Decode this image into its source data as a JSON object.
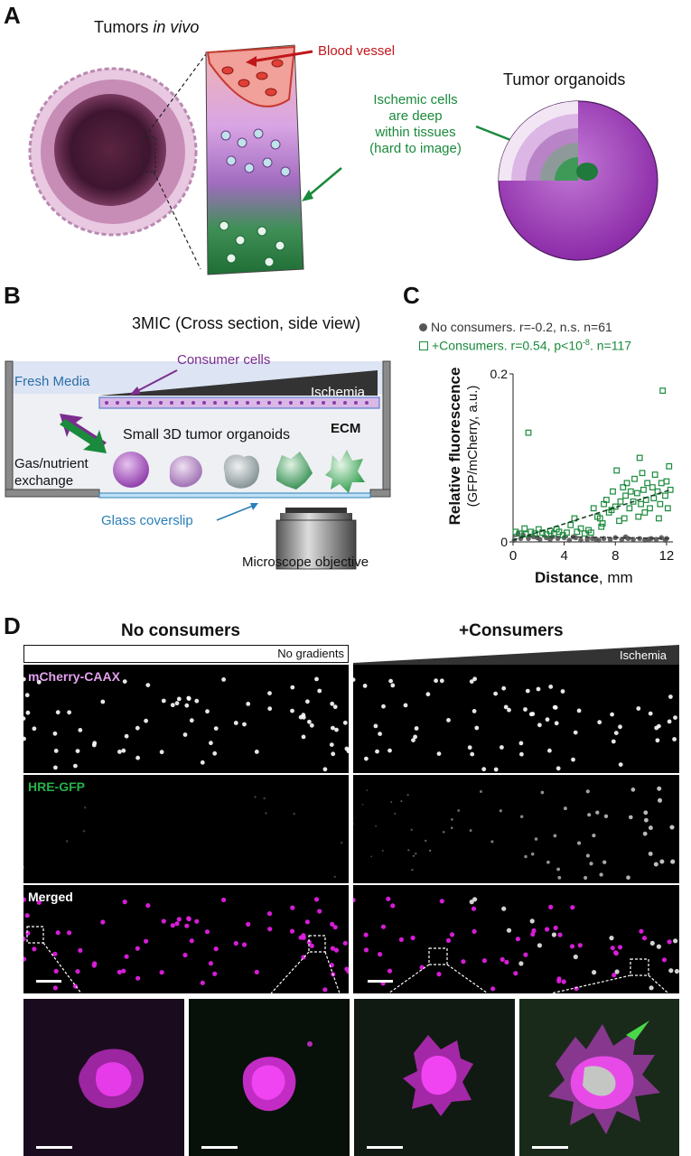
{
  "panels": {
    "a": {
      "letter": "A",
      "title_prefix": "Tumors ",
      "title_italic": "in vivo",
      "blood_vessel": "Blood vessel",
      "ischemic": [
        "Ischemic cells",
        "are deep",
        "within tissues",
        "(hard to image)"
      ],
      "organoids": "Tumor organoids"
    },
    "b": {
      "letter": "B",
      "title": "3MIC (Cross section, side view)",
      "consumer_cells": "Consumer cells",
      "fresh_media": "Fresh Media",
      "ischemia": "Ischemia",
      "ecm": "ECM",
      "small_organoids": "Small 3D tumor organoids",
      "gas_exchange": [
        "Gas/nutrient",
        "exchange"
      ],
      "glass": "Glass coverslip",
      "microscope": "Microscope objective"
    },
    "c": {
      "letter": "C",
      "legend_gray": "No consumers. r=-0.2, n.s. n=61",
      "legend_green_a": "+Consumers. r=0.54, p<10",
      "legend_green_exp": "-8",
      "legend_green_b": ". n=117",
      "ylabel_bold": "Relative fluorescence",
      "ylabel_sub": "(GFP/mCherry, a.u.)",
      "xlabel_bold": "Distance",
      "xlabel_unit": ", mm"
    },
    "d": {
      "letter": "D",
      "col_left": "No consumers",
      "col_right": "+Consumers",
      "no_gradients": "No gradients",
      "ischemia": "Ischemia",
      "row_mcherry": "mCherry-CAAX",
      "row_gfp": "HRE-GFP",
      "row_merged": "Merged"
    }
  },
  "colors": {
    "purple": "#7b2d8e",
    "green": "#1a8a3c",
    "red": "#c0161a",
    "blue_label": "#2a7fb8",
    "magenta": "#e01fe0"
  },
  "chart_data": {
    "type": "scatter",
    "xlabel": "Distance, mm",
    "ylabel": "Relative fluorescence (GFP/mCherry, a.u.)",
    "xlim": [
      0,
      12.5
    ],
    "ylim": [
      0,
      0.2
    ],
    "xticks": [
      "0",
      "4",
      "8",
      "12"
    ],
    "yticks": [
      "0",
      "0.2"
    ],
    "series": [
      {
        "name": "No consumers. r=-0.2, n.s. n=61",
        "marker": "filled-circle",
        "color": "#555555",
        "points": [
          [
            0.1,
            0.002
          ],
          [
            0.4,
            0.01
          ],
          [
            0.8,
            0.008
          ],
          [
            1.2,
            0.004
          ],
          [
            1.6,
            0.006
          ],
          [
            2.1,
            0.003
          ],
          [
            2.6,
            0.005
          ],
          [
            3.1,
            0.006
          ],
          [
            3.5,
            0.004
          ],
          [
            4.0,
            0.005
          ],
          [
            4.4,
            0.002
          ],
          [
            4.9,
            0.005
          ],
          [
            5.3,
            0.002
          ],
          [
            5.8,
            0.003
          ],
          [
            6.2,
            0.004
          ],
          [
            6.7,
            0.002
          ],
          [
            7.1,
            0.004
          ],
          [
            7.6,
            0.003
          ],
          [
            8.0,
            0.005
          ],
          [
            8.5,
            0.003
          ],
          [
            9.0,
            0.004
          ],
          [
            9.4,
            0.003
          ],
          [
            9.9,
            0.004
          ],
          [
            10.3,
            0.002
          ],
          [
            10.8,
            0.004
          ],
          [
            11.2,
            0.003
          ],
          [
            11.6,
            0.005
          ],
          [
            12.0,
            0.004
          ],
          [
            0.6,
            0.004
          ],
          [
            1.9,
            0.005
          ],
          [
            2.9,
            0.003
          ],
          [
            4.7,
            0.006
          ],
          [
            6.5,
            0.003
          ],
          [
            8.8,
            0.006
          ],
          [
            10.6,
            0.003
          ],
          [
            11.9,
            0.002
          ]
        ],
        "trend": [
          [
            0,
            0.007
          ],
          [
            12.3,
            0.004
          ]
        ]
      },
      {
        "name": "+Consumers. r=0.54, p<10-8. n=117",
        "marker": "open-square",
        "color": "#1a8a3c",
        "points": [
          [
            0.2,
            0.012
          ],
          [
            0.5,
            0.01
          ],
          [
            0.9,
            0.016
          ],
          [
            1.0,
            0.009
          ],
          [
            1.2,
            0.13
          ],
          [
            1.4,
            0.012
          ],
          [
            1.7,
            0.01
          ],
          [
            2.0,
            0.015
          ],
          [
            2.3,
            0.011
          ],
          [
            2.6,
            0.009
          ],
          [
            2.9,
            0.013
          ],
          [
            3.2,
            0.01
          ],
          [
            3.6,
            0.012
          ],
          [
            3.9,
            0.008
          ],
          [
            4.2,
            0.011
          ],
          [
            4.5,
            0.02
          ],
          [
            4.8,
            0.028
          ],
          [
            5.0,
            0.012
          ],
          [
            5.3,
            0.016
          ],
          [
            5.6,
            0.01
          ],
          [
            5.9,
            0.014
          ],
          [
            6.1,
            0.011
          ],
          [
            6.3,
            0.04
          ],
          [
            6.6,
            0.03
          ],
          [
            6.8,
            0.028
          ],
          [
            7.0,
            0.022
          ],
          [
            7.1,
            0.045
          ],
          [
            7.3,
            0.05
          ],
          [
            7.5,
            0.035
          ],
          [
            7.7,
            0.038
          ],
          [
            7.8,
            0.06
          ],
          [
            8.0,
            0.042
          ],
          [
            8.1,
            0.085
          ],
          [
            8.3,
            0.025
          ],
          [
            8.4,
            0.048
          ],
          [
            8.6,
            0.065
          ],
          [
            8.8,
            0.055
          ],
          [
            8.9,
            0.07
          ],
          [
            9.1,
            0.04
          ],
          [
            9.2,
            0.06
          ],
          [
            9.4,
            0.048
          ],
          [
            9.5,
            0.075
          ],
          [
            9.7,
            0.058
          ],
          [
            9.8,
            0.03
          ],
          [
            10.0,
            0.045
          ],
          [
            10.1,
            0.082
          ],
          [
            10.2,
            0.062
          ],
          [
            10.4,
            0.05
          ],
          [
            10.5,
            0.07
          ],
          [
            10.7,
            0.04
          ],
          [
            10.9,
            0.065
          ],
          [
            11.0,
            0.052
          ],
          [
            11.1,
            0.08
          ],
          [
            11.3,
            0.06
          ],
          [
            11.5,
            0.045
          ],
          [
            11.6,
            0.07
          ],
          [
            11.7,
            0.18
          ],
          [
            11.9,
            0.055
          ],
          [
            12.0,
            0.072
          ],
          [
            12.1,
            0.04
          ],
          [
            12.2,
            0.09
          ],
          [
            12.3,
            0.062
          ],
          [
            3.4,
            0.015
          ],
          [
            6.9,
            0.018
          ],
          [
            8.7,
            0.028
          ],
          [
            9.9,
            0.1
          ],
          [
            10.3,
            0.035
          ],
          [
            11.4,
            0.028
          ]
        ],
        "trend": [
          [
            0,
            0.002
          ],
          [
            12.3,
            0.062
          ]
        ]
      }
    ]
  }
}
